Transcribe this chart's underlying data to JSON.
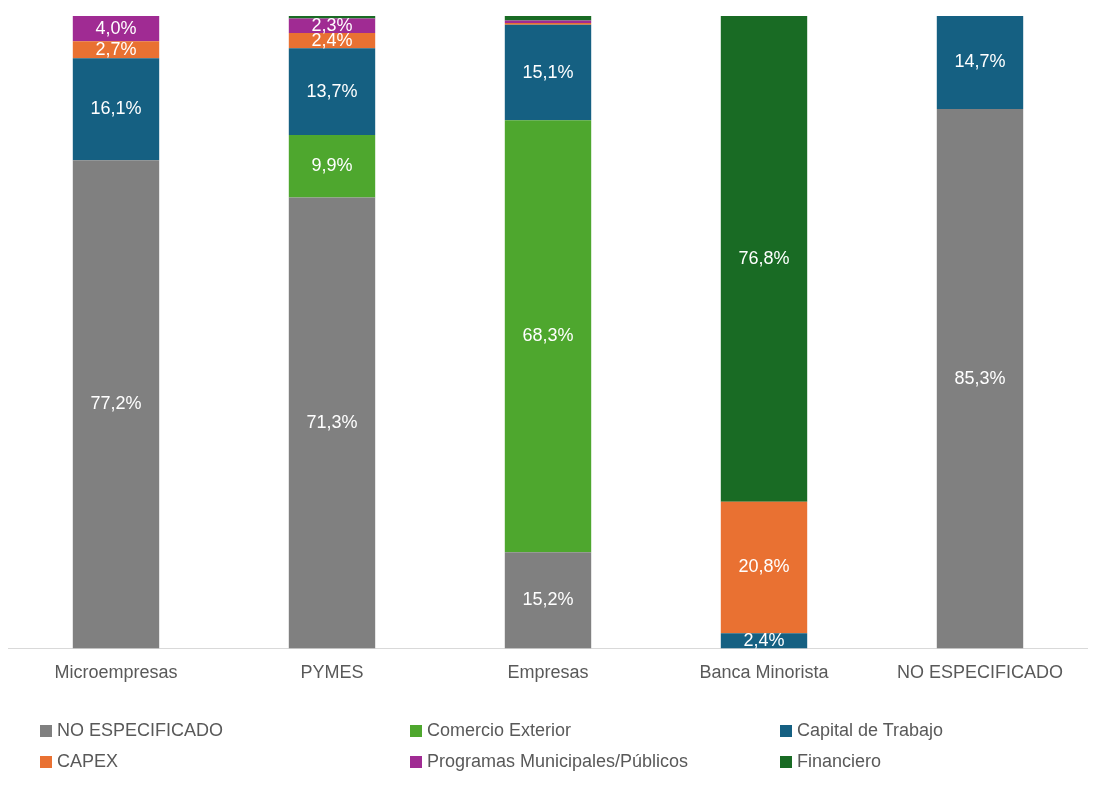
{
  "chart_data": {
    "type": "bar",
    "stacked": true,
    "categories": [
      "Microempresas",
      "PYMES",
      "Empresas",
      "Banca Minorista",
      "NO ESPECIFICADO"
    ],
    "ylim": [
      0,
      100
    ],
    "tick_labels": "x",
    "grid": false,
    "legend": "bottom",
    "series": [
      {
        "name": "NO ESPECIFICADO",
        "color": "#808080",
        "values": [
          77.2,
          71.3,
          15.2,
          null,
          85.3
        ],
        "value_labels": [
          "77,2%",
          "71,3%",
          "15,2%",
          null,
          "85,3%"
        ]
      },
      {
        "name": "Comercio Exterior",
        "color": "#4ea72e",
        "values": [
          null,
          9.9,
          68.3,
          null,
          null
        ],
        "value_labels": [
          null,
          "9,9%",
          "68,3%",
          null,
          null
        ]
      },
      {
        "name": "Capital de Trabajo",
        "color": "#156082",
        "values": [
          16.1,
          13.7,
          15.1,
          2.4,
          14.7
        ],
        "value_labels": [
          "16,1%",
          "13,7%",
          "15,1%",
          "2,4%",
          "14,7%"
        ]
      },
      {
        "name": "CAPEX",
        "color": "#e97132",
        "values": [
          2.7,
          2.4,
          0.3,
          20.8,
          null
        ],
        "value_labels": [
          "2,7%",
          "2,4%",
          null,
          "20,8%",
          null
        ]
      },
      {
        "name": "Programas Municipales/Públicos",
        "color": "#a02b93",
        "values": [
          4.0,
          2.3,
          0.4,
          null,
          null
        ],
        "value_labels": [
          "4,0%",
          "2,3%",
          null,
          null,
          null
        ]
      },
      {
        "name": "Financiero",
        "color": "#196b24",
        "values": [
          null,
          0.4,
          0.7,
          76.8,
          null
        ],
        "value_labels": [
          null,
          null,
          null,
          "76,8%",
          null
        ]
      }
    ]
  }
}
